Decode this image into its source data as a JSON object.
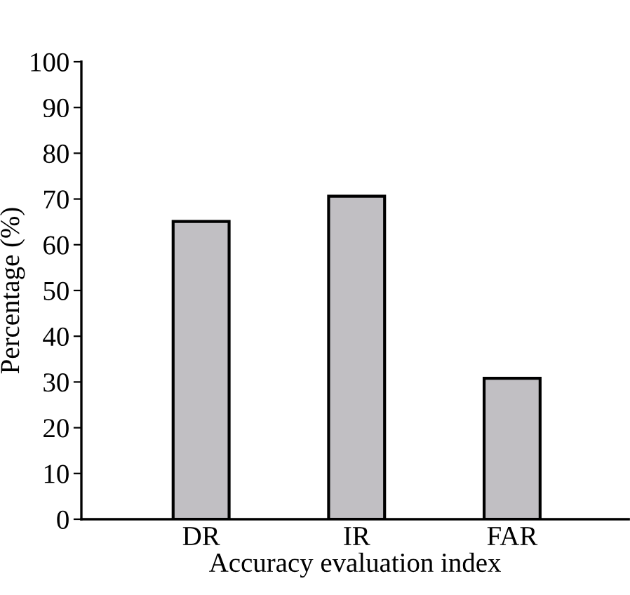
{
  "chart_data": {
    "type": "bar",
    "xlabel": "Accuracy evaluation index",
    "ylabel": "Percentage (%)",
    "categories": [
      "DR",
      "IR",
      "FAR"
    ],
    "values": [
      65.1,
      70.6,
      30.8
    ],
    "color": "#c1bfc3",
    "ylim": [
      0,
      100
    ],
    "yticks": [
      0,
      10,
      20,
      30,
      40,
      50,
      60,
      70,
      80,
      90,
      100
    ],
    "grid": false
  }
}
